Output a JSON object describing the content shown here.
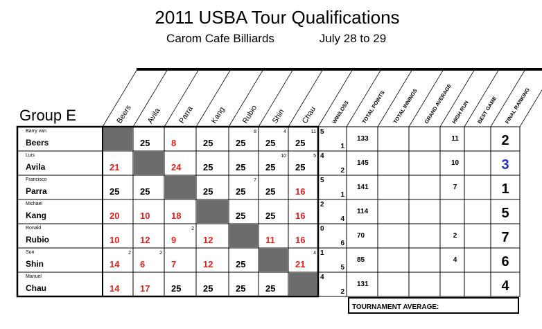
{
  "header": {
    "title": "2011 USBA Tour Qualifications",
    "venue": "Carom Cafe Billiards",
    "dates": "July 28 to 29"
  },
  "group": "Group E",
  "columns": [
    "Beers",
    "Avila",
    "Parra",
    "Kang",
    "Rubio",
    "Shin",
    "Chau",
    "WIN/LOSS",
    "TOTAL POINTS",
    "TOTAL INNINGS",
    "GRAND AVERAGE",
    "HIGH RUN",
    "BEST GAME",
    "FINAL RANKING"
  ],
  "rows": [
    {
      "first": "Barry van",
      "last": "Beers",
      "scores": [
        null,
        25,
        8,
        25,
        25,
        25,
        25
      ],
      "notes": [
        null,
        null,
        null,
        null,
        8,
        4,
        11
      ],
      "wins": 5,
      "losses": 1,
      "total_points": 133,
      "high_run": 11,
      "rank": 2
    },
    {
      "first": "Luis",
      "last": "Avila",
      "scores": [
        21,
        null,
        24,
        25,
        25,
        25,
        25
      ],
      "notes": [
        null,
        null,
        null,
        null,
        null,
        10,
        5
      ],
      "wins": 4,
      "losses": 2,
      "total_points": 145,
      "high_run": 10,
      "rank": 3,
      "rank_color": "#1c2fc4"
    },
    {
      "first": "Francisco",
      "last": "Parra",
      "scores": [
        25,
        25,
        null,
        25,
        25,
        25,
        16
      ],
      "notes": [
        null,
        null,
        null,
        null,
        7,
        null,
        null
      ],
      "wins": 5,
      "losses": 1,
      "total_points": 141,
      "high_run": 7,
      "rank": 1
    },
    {
      "first": "Michael",
      "last": "Kang",
      "scores": [
        20,
        10,
        18,
        null,
        25,
        25,
        16
      ],
      "notes": [
        null,
        null,
        null,
        null,
        null,
        null,
        null
      ],
      "wins": 2,
      "losses": 4,
      "total_points": 114,
      "high_run": null,
      "rank": 5
    },
    {
      "first": "Ronald",
      "last": "Rubio",
      "scores": [
        10,
        12,
        9,
        12,
        null,
        11,
        16
      ],
      "notes": [
        null,
        null,
        2,
        null,
        null,
        null,
        null
      ],
      "wins": 0,
      "losses": 6,
      "total_points": 70,
      "high_run": 2,
      "rank": 7
    },
    {
      "first": "Sun",
      "last": "Shin",
      "scores": [
        14,
        6,
        7,
        12,
        25,
        null,
        21
      ],
      "notes": [
        2,
        2,
        null,
        null,
        null,
        null,
        4
      ],
      "wins": 1,
      "losses": 5,
      "total_points": 85,
      "high_run": 4,
      "rank": 6
    },
    {
      "first": "Manuel",
      "last": "Chau",
      "scores": [
        14,
        17,
        25,
        25,
        25,
        25,
        null
      ],
      "notes": [
        null,
        null,
        null,
        null,
        null,
        null,
        null
      ],
      "wins": 4,
      "losses": 2,
      "total_points": 131,
      "high_run": null,
      "rank": 4
    }
  ],
  "footer": "TOURNAMENT AVERAGE:"
}
